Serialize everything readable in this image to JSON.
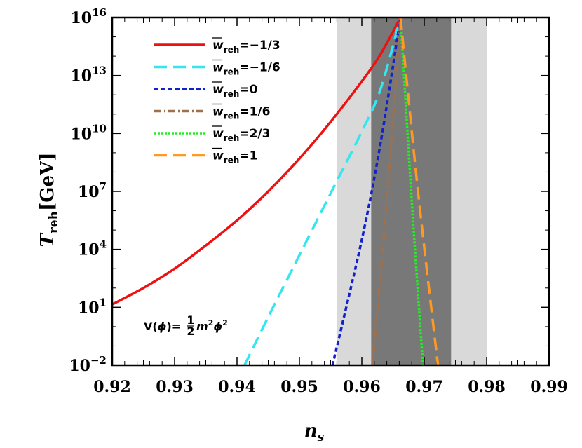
{
  "chart_data": {
    "type": "line",
    "xlabel": "n",
    "xlabel_sub": "s",
    "ylabel": "T",
    "ylabel_sub": "reh",
    "ylabel_unit": "[GeV]",
    "xlim": [
      0.92,
      0.99
    ],
    "ylim_log10": [
      -2,
      16
    ],
    "y_scale": "log",
    "x_ticks": [
      "0.92",
      "0.93",
      "0.94",
      "0.95",
      "0.96",
      "0.97",
      "0.98",
      "0.99"
    ],
    "y_ticks": [
      {
        "base": "10",
        "exp": "16"
      },
      {
        "base": "10",
        "exp": "13"
      },
      {
        "base": "10",
        "exp": "10"
      },
      {
        "base": "10",
        "exp": "7"
      },
      {
        "base": "10",
        "exp": "4"
      },
      {
        "base": "10",
        "exp": "1"
      },
      {
        "base": "10",
        "exp": "−2"
      }
    ],
    "bands": [
      {
        "x0": 0.956,
        "x1": 0.98,
        "color": "#d9d9d9"
      },
      {
        "x0": 0.9615,
        "x1": 0.9743,
        "color": "#787878"
      }
    ],
    "legend_placement": "top-left",
    "series": [
      {
        "name": "=−1/3",
        "color": "#ee1111",
        "dash": "solid",
        "points": [
          [
            0.92,
            1.15
          ],
          [
            0.925,
            2.0
          ],
          [
            0.93,
            3.0
          ],
          [
            0.935,
            4.2
          ],
          [
            0.94,
            5.5
          ],
          [
            0.945,
            7.0
          ],
          [
            0.95,
            8.7
          ],
          [
            0.955,
            10.6
          ],
          [
            0.96,
            12.7
          ],
          [
            0.963,
            14.1
          ],
          [
            0.9662,
            16.0
          ]
        ]
      },
      {
        "name": "=−1/6",
        "color": "#33e6f2",
        "dash": "long",
        "points": [
          [
            0.9412,
            -2.0
          ],
          [
            0.945,
            0.5
          ],
          [
            0.95,
            3.7
          ],
          [
            0.955,
            6.9
          ],
          [
            0.96,
            10.1
          ],
          [
            0.963,
            12.3
          ],
          [
            0.9662,
            16.0
          ]
        ]
      },
      {
        "name": "=0",
        "color": "#1122cc",
        "dash": "short",
        "points": [
          [
            0.9553,
            -2.0
          ],
          [
            0.96,
            4.5
          ],
          [
            0.963,
            9.5
          ],
          [
            0.9662,
            16.0
          ]
        ]
      },
      {
        "name": "=1/6",
        "color": "#a0704a",
        "dash": "dashdot",
        "points": [
          [
            0.9617,
            -2.0
          ],
          [
            0.964,
            6.5
          ],
          [
            0.9662,
            16.0
          ]
        ]
      },
      {
        "name": "=2/3",
        "color": "#22ee22",
        "dash": "dot",
        "points": [
          [
            0.9662,
            16.0
          ],
          [
            0.968,
            6.5
          ],
          [
            0.9698,
            -2.0
          ]
        ]
      },
      {
        "name": "=1",
        "color": "#ff9922",
        "dash": "long",
        "points": [
          [
            0.9662,
            16.0
          ],
          [
            0.969,
            7.0
          ],
          [
            0.9722,
            -2.0
          ]
        ]
      }
    ],
    "legend_symbol": "w",
    "legend_subscript": "reh",
    "annotation": {
      "prefix": "V(",
      "phi": "ϕ",
      "mid": ")=",
      "frac_num": "1",
      "frac_den": "2",
      "m": "m",
      "exp": "2"
    }
  }
}
